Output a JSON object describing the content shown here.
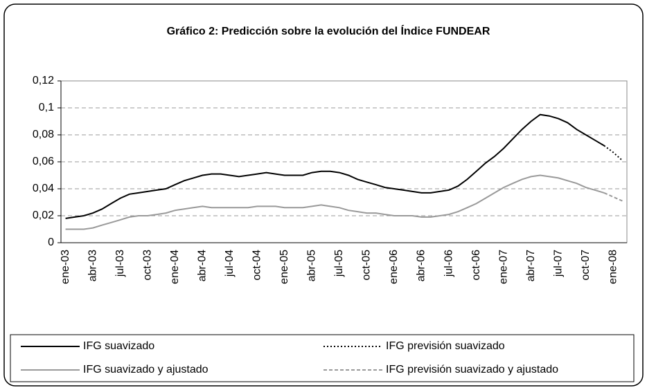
{
  "chart_data": {
    "type": "line",
    "title": "Gráfico 2: Predicción sobre la evolución del Índice FUNDEAR",
    "categories": [
      "ene-03",
      null,
      null,
      "abr-03",
      null,
      null,
      "jul-03",
      null,
      null,
      "oct-03",
      null,
      null,
      "ene-04",
      null,
      null,
      "abr-04",
      null,
      null,
      "jul-04",
      null,
      null,
      "oct-04",
      null,
      null,
      "ene-05",
      null,
      null,
      "abr-05",
      null,
      null,
      "jul-05",
      null,
      null,
      "oct-05",
      null,
      null,
      "ene-06",
      null,
      null,
      "abr-06",
      null,
      null,
      "jul-06",
      null,
      null,
      "oct-06",
      null,
      null,
      "ene-07",
      null,
      null,
      "abr-07",
      null,
      null,
      "jul-07",
      null,
      null,
      "oct-07",
      null,
      null,
      "ene-08",
      null
    ],
    "series": [
      {
        "name": "IFG suavizado",
        "color": "#000000",
        "dash": "solid",
        "values": [
          0.018,
          0.019,
          0.02,
          0.022,
          0.025,
          0.029,
          0.033,
          0.036,
          0.037,
          0.038,
          0.039,
          0.04,
          0.043,
          0.046,
          0.048,
          0.05,
          0.051,
          0.051,
          0.05,
          0.049,
          0.05,
          0.051,
          0.052,
          0.051,
          0.05,
          0.05,
          0.05,
          0.052,
          0.053,
          0.053,
          0.052,
          0.05,
          0.047,
          0.045,
          0.043,
          0.041,
          0.04,
          0.039,
          0.038,
          0.037,
          0.037,
          0.038,
          0.039,
          0.042,
          0.047,
          0.053,
          0.059,
          0.064,
          0.07,
          0.077,
          0.084,
          0.09,
          0.095,
          0.094,
          0.092,
          0.089,
          0.084,
          0.08,
          0.076,
          0.072,
          null,
          null
        ]
      },
      {
        "name": "IFG previsión suavizado",
        "color": "#000000",
        "dash": "dotted",
        "values": [
          null,
          null,
          null,
          null,
          null,
          null,
          null,
          null,
          null,
          null,
          null,
          null,
          null,
          null,
          null,
          null,
          null,
          null,
          null,
          null,
          null,
          null,
          null,
          null,
          null,
          null,
          null,
          null,
          null,
          null,
          null,
          null,
          null,
          null,
          null,
          null,
          null,
          null,
          null,
          null,
          null,
          null,
          null,
          null,
          null,
          null,
          null,
          null,
          null,
          null,
          null,
          null,
          null,
          null,
          null,
          null,
          null,
          null,
          null,
          0.072,
          0.067,
          0.061
        ]
      },
      {
        "name": "IFG suavizado y ajustado",
        "color": "#999999",
        "dash": "solid",
        "values": [
          0.01,
          0.01,
          0.01,
          0.011,
          0.013,
          0.015,
          0.017,
          0.019,
          0.02,
          0.02,
          0.021,
          0.022,
          0.024,
          0.025,
          0.026,
          0.027,
          0.026,
          0.026,
          0.026,
          0.026,
          0.026,
          0.027,
          0.027,
          0.027,
          0.026,
          0.026,
          0.026,
          0.027,
          0.028,
          0.027,
          0.026,
          0.024,
          0.023,
          0.022,
          0.022,
          0.021,
          0.02,
          0.02,
          0.02,
          0.019,
          0.019,
          0.02,
          0.021,
          0.023,
          0.026,
          0.029,
          0.033,
          0.037,
          0.041,
          0.044,
          0.047,
          0.049,
          0.05,
          0.049,
          0.048,
          0.046,
          0.044,
          0.041,
          0.039,
          0.037,
          null,
          null
        ]
      },
      {
        "name": "IFG previsión suavizado y ajustado",
        "color": "#999999",
        "dash": "dashed",
        "values": [
          null,
          null,
          null,
          null,
          null,
          null,
          null,
          null,
          null,
          null,
          null,
          null,
          null,
          null,
          null,
          null,
          null,
          null,
          null,
          null,
          null,
          null,
          null,
          null,
          null,
          null,
          null,
          null,
          null,
          null,
          null,
          null,
          null,
          null,
          null,
          null,
          null,
          null,
          null,
          null,
          null,
          null,
          null,
          null,
          null,
          null,
          null,
          null,
          null,
          null,
          null,
          null,
          null,
          null,
          null,
          null,
          null,
          null,
          null,
          0.037,
          0.034,
          0.031
        ]
      }
    ],
    "ylim": [
      0,
      0.12
    ],
    "yticks": [
      0,
      {
        "value": 0.02,
        "label": "0,02"
      },
      {
        "value": 0.04,
        "label": "0,04"
      },
      {
        "value": 0.06,
        "label": "0,06"
      },
      {
        "value": 0.08,
        "label": "0,08"
      },
      {
        "value": 0.1,
        "label": "0,1"
      },
      {
        "value": 0.12,
        "label": "0,12"
      }
    ],
    "grid": true,
    "legend": "bottom"
  }
}
